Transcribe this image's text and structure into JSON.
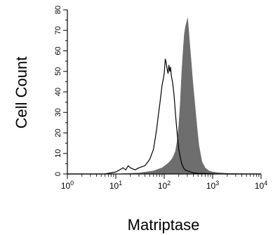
{
  "chart_data": {
    "type": "area",
    "title": "",
    "xlabel": "Matriptase",
    "ylabel": "Cell Count",
    "x_scale": "log",
    "xlim": [
      1,
      10000
    ],
    "ylim": [
      0,
      80
    ],
    "grid": false,
    "legend": "none",
    "x_ticks": [
      {
        "value": 1,
        "base": "10",
        "exp": "0"
      },
      {
        "value": 10,
        "base": "10",
        "exp": "1"
      },
      {
        "value": 100,
        "base": "10",
        "exp": "2"
      },
      {
        "value": 1000,
        "base": "10",
        "exp": "3"
      },
      {
        "value": 10000,
        "base": "10",
        "exp": "4"
      }
    ],
    "y_ticks": [
      "0",
      "10",
      "20",
      "30",
      "40",
      "50",
      "60",
      "70",
      "80"
    ],
    "series": [
      {
        "style": "filled",
        "color": "#6e6e6e",
        "x": [
          1,
          10,
          30,
          60,
          90,
          110,
          130,
          150,
          170,
          185,
          200,
          215,
          230,
          245,
          260,
          275,
          290,
          305,
          320,
          340,
          360,
          380,
          400,
          430,
          470,
          520,
          600,
          700,
          850,
          1000,
          1300,
          2000,
          3000,
          5000,
          8000,
          10000
        ],
        "y": [
          0,
          0,
          0.5,
          1.5,
          3,
          4.5,
          6,
          8,
          11,
          16,
          24,
          35,
          50,
          60,
          68,
          72,
          74,
          76,
          70,
          62,
          55,
          48,
          42,
          34,
          24,
          14,
          6,
          3,
          1.5,
          1,
          0.6,
          0.3,
          0.2,
          0.1,
          0,
          0
        ]
      },
      {
        "style": "line",
        "color": "#000000",
        "x": [
          1,
          6,
          10,
          12,
          14,
          16,
          18,
          20,
          25,
          30,
          40,
          50,
          60,
          70,
          75,
          80,
          85,
          90,
          95,
          100,
          105,
          110,
          115,
          120,
          125,
          130,
          135,
          140,
          150,
          160,
          170,
          180,
          190,
          200,
          215,
          230,
          250,
          270,
          300,
          350,
          400,
          500,
          700,
          1000,
          2000,
          4000,
          10000
        ],
        "y": [
          0,
          0,
          1,
          2,
          3,
          2,
          4,
          3,
          2,
          3,
          4,
          7,
          12,
          22,
          28,
          33,
          38,
          43,
          46,
          49,
          56,
          54,
          51,
          49,
          53,
          50,
          52,
          48,
          44,
          38,
          30,
          23,
          17,
          12,
          8,
          5,
          3,
          2,
          1.5,
          1,
          0.5,
          0.3,
          0.2,
          0.1,
          0,
          0,
          0
        ]
      }
    ]
  }
}
